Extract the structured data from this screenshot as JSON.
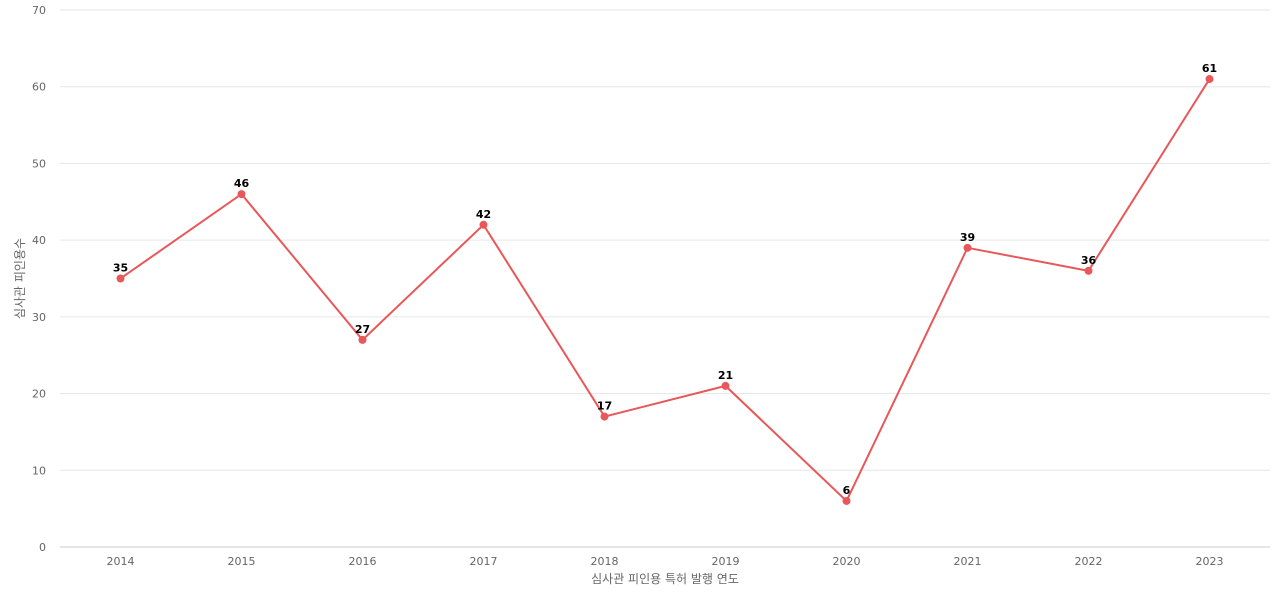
{
  "chart_data": {
    "type": "line",
    "categories": [
      "2014",
      "2015",
      "2016",
      "2017",
      "2018",
      "2019",
      "2020",
      "2021",
      "2022",
      "2023"
    ],
    "series": [
      {
        "values": [
          35,
          46,
          27,
          42,
          17,
          21,
          6,
          39,
          36,
          61
        ],
        "color": "#e8585a"
      }
    ],
    "xlabel": "심사관 피인용 특허 발행 연도",
    "ylabel": "심사관 피인용수",
    "ylim": [
      0,
      70
    ],
    "yticks": [
      0,
      10,
      20,
      30,
      40,
      50,
      60,
      70
    ],
    "grid": true,
    "data_labels": true
  }
}
